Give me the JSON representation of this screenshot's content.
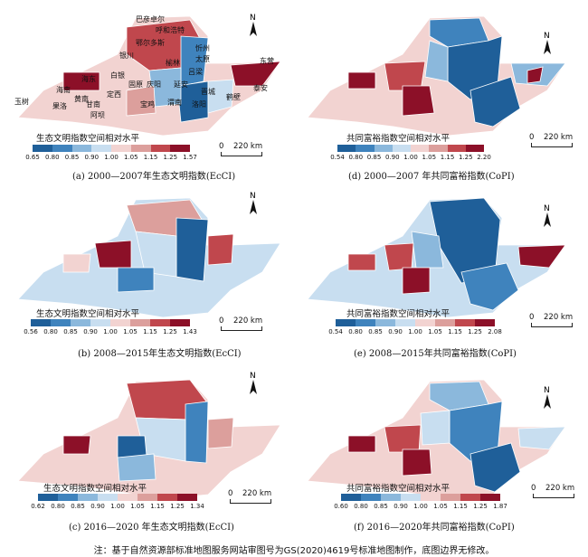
{
  "legend_titles": {
    "ecci": "生态文明指数空间相对水平",
    "copi": "共同富裕指数空间相对水平"
  },
  "colors": [
    "#1f5f99",
    "#3f83bd",
    "#8bb8dc",
    "#c8def0",
    "#f2d3d1",
    "#dc9f9c",
    "#c0474d",
    "#8c1028"
  ],
  "scale": {
    "zero": "0",
    "dist": "220 km"
  },
  "north": "N",
  "panels": [
    {
      "id": "a",
      "caption": "(a) 2000—2007年生态文明指数(EcCI)",
      "ticks": [
        "0.65",
        "0.80",
        "0.85",
        "0.90",
        "1.00",
        "1.05",
        "1.15",
        "1.25",
        "1.57"
      ]
    },
    {
      "id": "d",
      "caption": "(d) 2000—2007 年共同富裕指数(CoPI)",
      "ticks": [
        "0.54",
        "0.80",
        "0.85",
        "0.90",
        "1.00",
        "1.05",
        "1.15",
        "1.25",
        "2.20"
      ]
    },
    {
      "id": "b",
      "caption": "(b) 2008—2015年生态文明指数(EcCI)",
      "ticks": [
        "0.56",
        "0.80",
        "0.85",
        "0.90",
        "1.00",
        "1.05",
        "1.15",
        "1.25",
        "1.43"
      ]
    },
    {
      "id": "e",
      "caption": "(e) 2008—2015年共同富裕指数(CoPI)",
      "ticks": [
        "0.54",
        "0.80",
        "0.85",
        "0.90",
        "1.00",
        "1.05",
        "1.15",
        "1.25",
        "2.08"
      ]
    },
    {
      "id": "c",
      "caption": "(c) 2016—2020 年生态文明指数(EcCI)",
      "ticks": [
        "0.62",
        "0.80",
        "0.85",
        "0.90",
        "1.00",
        "1.05",
        "1.15",
        "1.25",
        "1.34"
      ]
    },
    {
      "id": "f",
      "caption": "(f) 2016—2020年共同富裕指数(CoPI)",
      "ticks": [
        "0.60",
        "0.80",
        "0.85",
        "0.90",
        "1.00",
        "1.05",
        "1.15",
        "1.25",
        "1.87"
      ]
    }
  ],
  "cities": [
    "巴彦卓尔",
    "呼和浩特",
    "鄂尔多斯",
    "忻州",
    "银川",
    "榆林",
    "太原",
    "东营",
    "海东",
    "白银",
    "吕梁",
    "泰安",
    "海南",
    "黄南",
    "固原",
    "庆阳",
    "延安",
    "晋城",
    "玉树",
    "果洛",
    "定西",
    "渭南",
    "鹤壁",
    "甘南",
    "阿坝",
    "宝鸡",
    "洛阳"
  ],
  "note": "注：基于自然资源部标准地图服务网站审图号为GS(2020)4619号标准地图制作，底图边界无修改。"
}
